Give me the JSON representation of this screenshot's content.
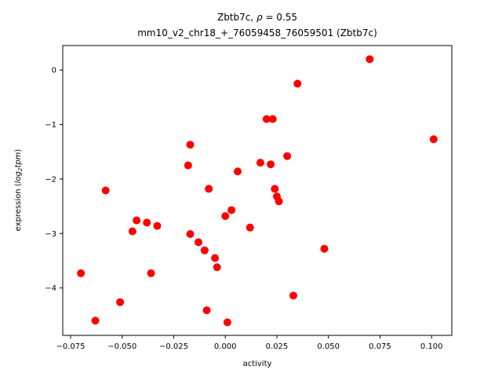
{
  "title": {
    "line1_prefix": "Zbtb7c, ",
    "rho": "ρ",
    "line1_suffix": " = 0.55",
    "line2": "mm10_v2_chr18_+_76059458_76059501 (Zbtb7c)"
  },
  "chart_data": {
    "type": "scatter",
    "title": "Zbtb7c, ρ = 0.55",
    "subtitle": "mm10_v2_chr18_+_76059458_76059501 (Zbtb7c)",
    "xlabel": "activity",
    "ylabel": "expression (log2tpm)",
    "ylabel_parts": {
      "prefix": "expression (",
      "italic_log": "log",
      "sub": "2",
      "italic_tpm": "tpm",
      "suffix": ")"
    },
    "marker_color": "#ff0000",
    "axis_color": "#000000",
    "grid": false,
    "legend": "none",
    "xlim": [
      -0.0788,
      0.1098
    ],
    "ylim": [
      -4.87,
      0.45
    ],
    "x_ticks": [
      -0.075,
      -0.05,
      -0.025,
      0.0,
      0.025,
      0.05,
      0.075,
      0.1
    ],
    "x_tick_labels": [
      "−0.075",
      "−0.050",
      "−0.025",
      "0.000",
      "0.025",
      "0.050",
      "0.075",
      "0.100"
    ],
    "y_ticks": [
      0,
      -1,
      -2,
      -3,
      -4
    ],
    "y_tick_labels": [
      "0",
      "−1",
      "−2",
      "−3",
      "−4"
    ],
    "points": [
      [
        -0.07,
        -3.73
      ],
      [
        -0.063,
        -4.6
      ],
      [
        -0.058,
        -2.21
      ],
      [
        -0.051,
        -4.26
      ],
      [
        -0.045,
        -2.96
      ],
      [
        -0.043,
        -2.76
      ],
      [
        -0.038,
        -2.8
      ],
      [
        -0.036,
        -3.73
      ],
      [
        -0.033,
        -2.86
      ],
      [
        -0.018,
        -1.75
      ],
      [
        -0.017,
        -1.37
      ],
      [
        -0.017,
        -3.01
      ],
      [
        -0.013,
        -3.16
      ],
      [
        -0.01,
        -3.31
      ],
      [
        -0.009,
        -4.41
      ],
      [
        -0.008,
        -2.18
      ],
      [
        -0.005,
        -3.45
      ],
      [
        -0.004,
        -3.62
      ],
      [
        0.0,
        -2.68
      ],
      [
        0.001,
        -4.63
      ],
      [
        0.003,
        -2.57
      ],
      [
        0.006,
        -1.86
      ],
      [
        0.012,
        -2.89
      ],
      [
        0.017,
        -1.7
      ],
      [
        0.02,
        -0.9
      ],
      [
        0.022,
        -1.73
      ],
      [
        0.023,
        -0.9
      ],
      [
        0.024,
        -2.18
      ],
      [
        0.025,
        -2.32
      ],
      [
        0.026,
        -2.41
      ],
      [
        0.03,
        -1.58
      ],
      [
        0.033,
        -4.14
      ],
      [
        0.035,
        -0.25
      ],
      [
        0.048,
        -3.28
      ],
      [
        0.07,
        0.2
      ],
      [
        0.101,
        -1.27
      ]
    ]
  }
}
